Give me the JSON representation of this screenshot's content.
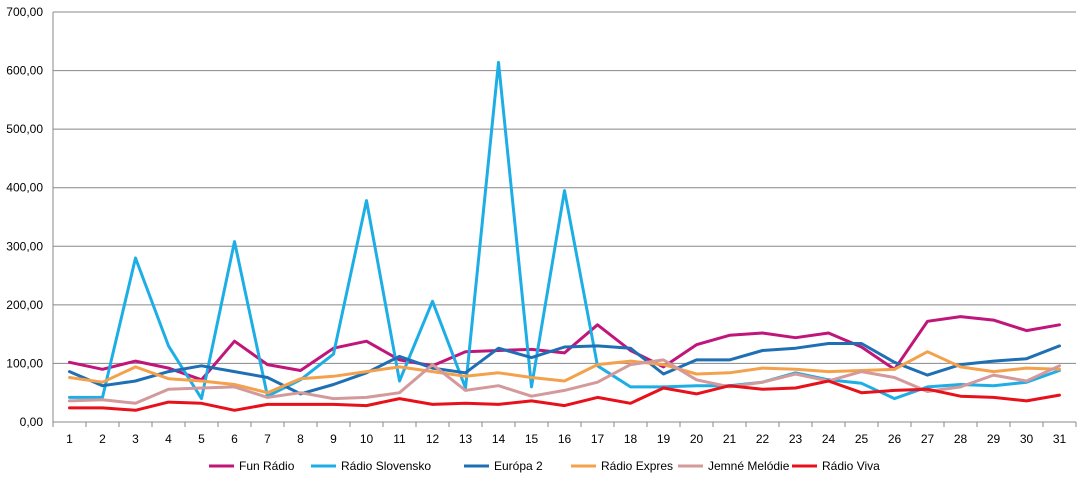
{
  "chart_data": {
    "type": "line",
    "title": "",
    "xlabel": "",
    "ylabel": "",
    "categories": [
      "1",
      "2",
      "3",
      "4",
      "5",
      "6",
      "7",
      "8",
      "9",
      "10",
      "11",
      "12",
      "13",
      "14",
      "15",
      "16",
      "17",
      "18",
      "19",
      "20",
      "21",
      "22",
      "23",
      "24",
      "25",
      "26",
      "27",
      "28",
      "29",
      "30",
      "31"
    ],
    "ylim": [
      0,
      700
    ],
    "yticks": [
      0,
      100,
      200,
      300,
      400,
      500,
      600,
      700
    ],
    "ytick_labels": [
      "0,00",
      "100,00",
      "200,00",
      "300,00",
      "400,00",
      "500,00",
      "600,00",
      "700,00"
    ],
    "grid": "horizontal",
    "legend_position": "bottom",
    "series": [
      {
        "name": "Fun Rádio",
        "color": "#C0157A",
        "values": [
          102,
          90,
          104,
          92,
          72,
          138,
          98,
          88,
          126,
          138,
          106,
          96,
          120,
          122,
          124,
          118,
          166,
          122,
          94,
          132,
          148,
          152,
          144,
          152,
          128,
          90,
          172,
          180,
          174,
          156,
          166
        ]
      },
      {
        "name": "Rádio Slovensko",
        "color": "#1EAEE6",
        "values": [
          42,
          42,
          280,
          130,
          40,
          308,
          44,
          72,
          116,
          378,
          70,
          206,
          58,
          614,
          60,
          395,
          96,
          60,
          60,
          62,
          62,
          68,
          84,
          72,
          66,
          40,
          60,
          64,
          62,
          68,
          88
        ]
      },
      {
        "name": "Európa 2",
        "color": "#1F6FB5",
        "values": [
          86,
          62,
          70,
          86,
          96,
          86,
          76,
          48,
          64,
          84,
          112,
          92,
          84,
          126,
          110,
          128,
          130,
          126,
          82,
          106,
          106,
          122,
          126,
          134,
          134,
          102,
          80,
          98,
          104,
          108,
          130
        ]
      },
      {
        "name": "Rádio Expres",
        "color": "#F4A14B",
        "values": [
          76,
          68,
          94,
          74,
          70,
          64,
          50,
          74,
          78,
          86,
          94,
          86,
          78,
          84,
          76,
          70,
          98,
          104,
          98,
          82,
          84,
          92,
          90,
          86,
          88,
          90,
          120,
          94,
          86,
          92,
          90
        ]
      },
      {
        "name": "Jemné Melódie",
        "color": "#D4999A",
        "values": [
          36,
          38,
          32,
          56,
          58,
          60,
          42,
          50,
          40,
          42,
          50,
          98,
          54,
          62,
          44,
          54,
          68,
          98,
          106,
          72,
          60,
          68,
          82,
          70,
          86,
          76,
          52,
          60,
          80,
          70,
          96
        ]
      },
      {
        "name": "Rádio Viva",
        "color": "#E8101A",
        "values": [
          24,
          24,
          20,
          34,
          32,
          20,
          30,
          30,
          30,
          28,
          40,
          30,
          32,
          30,
          36,
          28,
          42,
          32,
          58,
          48,
          62,
          56,
          58,
          70,
          50,
          54,
          56,
          44,
          42,
          36,
          46
        ]
      }
    ]
  }
}
